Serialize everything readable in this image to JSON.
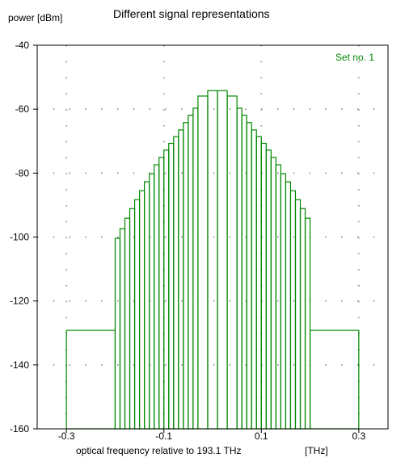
{
  "chart_data": {
    "type": "line",
    "title": "Different signal representations",
    "ylabel": "power [dBm]",
    "xlabel": "optical frequency relative to 193.1 THz",
    "xunit": "[THz]",
    "legend": "Set no. 1",
    "legend_position": "top-right",
    "xlim": [
      -0.36,
      0.36
    ],
    "ylim": [
      -160,
      -40
    ],
    "x_ticks": [
      -0.3,
      -0.1,
      0.1,
      0.3
    ],
    "x_tick_labels": [
      "-0.3",
      "-0.1",
      "0.1",
      "0.3"
    ],
    "y_ticks": [
      -40,
      -60,
      -80,
      -100,
      -120,
      -140,
      -160
    ],
    "y_tick_labels": [
      "-40",
      "-60",
      "-80",
      "-100",
      "-120",
      "-140",
      "-160"
    ],
    "grid": "dotted",
    "line_color": "#008800",
    "series": [
      {
        "style": "bins",
        "bins": [
          {
            "x0": -0.3,
            "x1": -0.2,
            "y": -129.2
          },
          {
            "x0": -0.2,
            "x1": -0.19,
            "y": -100.4
          },
          {
            "x0": -0.19,
            "x1": -0.18,
            "y": -97.4
          },
          {
            "x0": -0.18,
            "x1": -0.17,
            "y": -94.1
          },
          {
            "x0": -0.17,
            "x1": -0.16,
            "y": -91.1
          },
          {
            "x0": -0.16,
            "x1": -0.15,
            "y": -88.3
          },
          {
            "x0": -0.15,
            "x1": -0.14,
            "y": -85.5
          },
          {
            "x0": -0.14,
            "x1": -0.13,
            "y": -82.7
          },
          {
            "x0": -0.13,
            "x1": -0.12,
            "y": -80.2
          },
          {
            "x0": -0.12,
            "x1": -0.11,
            "y": -77.4
          },
          {
            "x0": -0.11,
            "x1": -0.1,
            "y": -75.1
          },
          {
            "x0": -0.1,
            "x1": -0.09,
            "y": -72.8
          },
          {
            "x0": -0.09,
            "x1": -0.08,
            "y": -70.7
          },
          {
            "x0": -0.08,
            "x1": -0.07,
            "y": -68.6
          },
          {
            "x0": -0.07,
            "x1": -0.06,
            "y": -66.5
          },
          {
            "x0": -0.06,
            "x1": -0.05,
            "y": -64.2
          },
          {
            "x0": -0.05,
            "x1": -0.04,
            "y": -61.9
          },
          {
            "x0": -0.04,
            "x1": -0.03,
            "y": -59.7
          },
          {
            "x0": -0.03,
            "x1": -0.01,
            "y": -55.9
          },
          {
            "x0": -0.01,
            "x1": 0.01,
            "y": -54.2
          },
          {
            "x0": 0.01,
            "x1": 0.03,
            "y": -54.2
          },
          {
            "x0": 0.03,
            "x1": 0.05,
            "y": -55.9
          },
          {
            "x0": 0.05,
            "x1": 0.06,
            "y": -59.7
          },
          {
            "x0": 0.06,
            "x1": 0.07,
            "y": -61.9
          },
          {
            "x0": 0.07,
            "x1": 0.08,
            "y": -64.2
          },
          {
            "x0": 0.08,
            "x1": 0.09,
            "y": -66.5
          },
          {
            "x0": 0.09,
            "x1": 0.1,
            "y": -68.6
          },
          {
            "x0": 0.1,
            "x1": 0.11,
            "y": -70.7
          },
          {
            "x0": 0.11,
            "x1": 0.12,
            "y": -72.8
          },
          {
            "x0": 0.12,
            "x1": 0.13,
            "y": -75.1
          },
          {
            "x0": 0.13,
            "x1": 0.14,
            "y": -77.4
          },
          {
            "x0": 0.14,
            "x1": 0.15,
            "y": -80.2
          },
          {
            "x0": 0.15,
            "x1": 0.16,
            "y": -82.7
          },
          {
            "x0": 0.16,
            "x1": 0.17,
            "y": -85.5
          },
          {
            "x0": 0.17,
            "x1": 0.18,
            "y": -88.3
          },
          {
            "x0": 0.18,
            "x1": 0.19,
            "y": -91.1
          },
          {
            "x0": 0.19,
            "x1": 0.2,
            "y": -94.1
          },
          {
            "x0": 0.2,
            "x1": 0.3,
            "y": -129.2
          }
        ]
      }
    ]
  }
}
